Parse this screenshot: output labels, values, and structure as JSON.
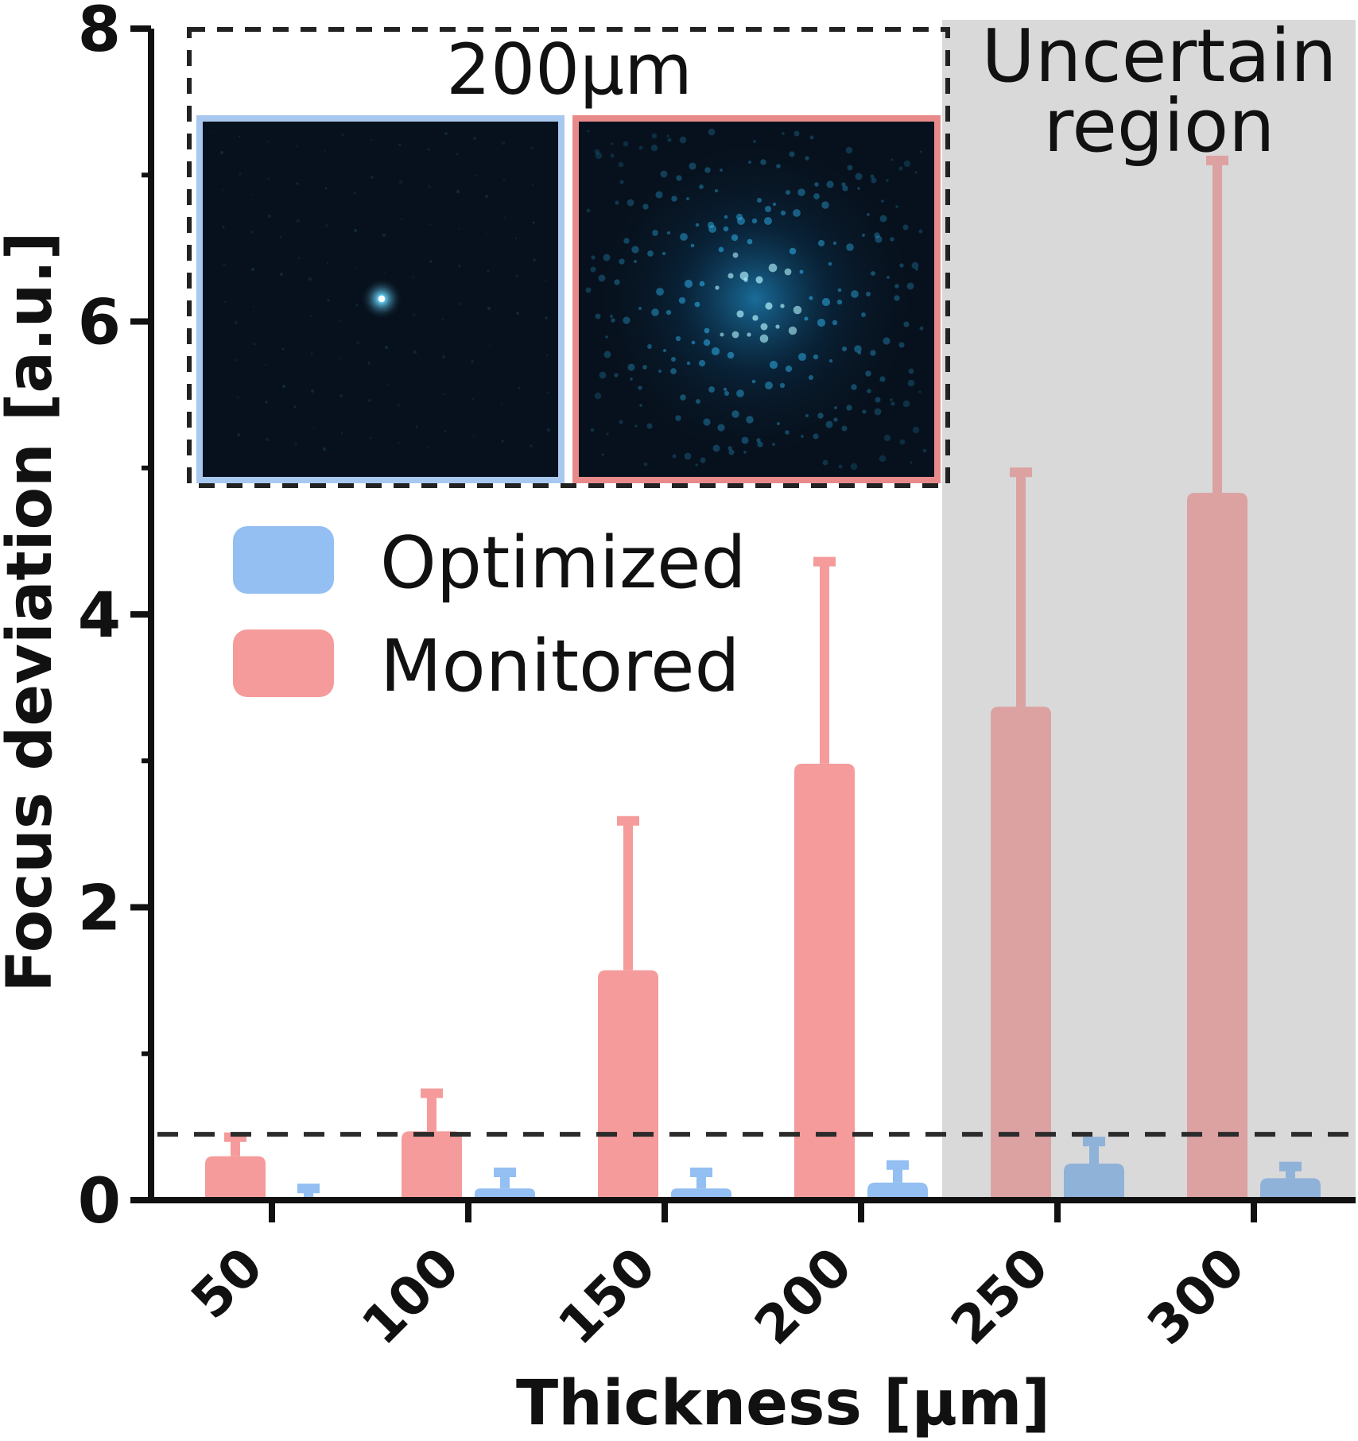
{
  "chart_data": {
    "type": "bar",
    "xlabel": "Thickness [µm]",
    "ylabel": "Focus deviation [a.u.]",
    "ylim": [
      0,
      8
    ],
    "yticks": [
      0,
      2,
      4,
      6,
      8
    ],
    "yminor_ticks": [
      1,
      3,
      5,
      7
    ],
    "categories": [
      "50",
      "100",
      "150",
      "200",
      "250",
      "300"
    ],
    "series": [
      {
        "name": "Monitored",
        "color": "#F59B9B",
        "values": [
          0.3,
          0.47,
          1.57,
          2.98,
          3.37,
          4.83
        ],
        "error_upper": [
          0.43,
          0.73,
          2.59,
          4.36,
          4.97,
          7.1
        ]
      },
      {
        "name": "Optimized",
        "color": "#93BFF2",
        "values": [
          0.02,
          0.08,
          0.08,
          0.12,
          0.25,
          0.15
        ],
        "error_upper": [
          0.08,
          0.19,
          0.19,
          0.24,
          0.4,
          0.23
        ]
      }
    ],
    "threshold_line": 0.45,
    "shaded_region": {
      "label_line1": "Uncertain",
      "label_line2": "region",
      "from_category": "250",
      "color": "#D9D9D9"
    },
    "legend": {
      "placement": "upper-left",
      "entries": [
        "Optimized",
        "Monitored"
      ]
    },
    "inset": {
      "title": "200µm",
      "placement": "top",
      "left_frame_color": "#A8C8EF",
      "right_frame_color": "#E98A8A",
      "left_icon": "optimized-focus-spot-image",
      "right_icon": "monitored-speckle-image"
    },
    "grid": false
  }
}
